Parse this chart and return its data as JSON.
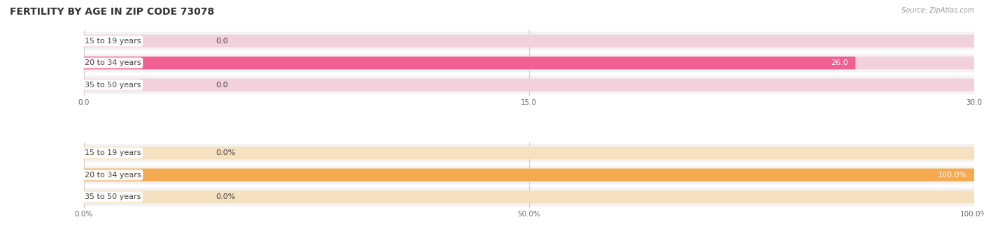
{
  "title": "FERTILITY BY AGE IN ZIP CODE 73078",
  "source": "Source: ZipAtlas.com",
  "top_chart": {
    "categories": [
      "15 to 19 years",
      "20 to 34 years",
      "35 to 50 years"
    ],
    "values": [
      0.0,
      26.0,
      0.0
    ],
    "xlim": [
      0,
      30.0
    ],
    "xticks": [
      0.0,
      15.0,
      30.0
    ],
    "xtick_labels": [
      "0.0",
      "15.0",
      "30.0"
    ],
    "bar_color": "#f06090",
    "bar_bg_color": "#f2d0dc",
    "value_color_inside": "#ffffff",
    "value_color_outside": "#555555",
    "label_value_threshold": 24.0
  },
  "bottom_chart": {
    "categories": [
      "15 to 19 years",
      "20 to 34 years",
      "35 to 50 years"
    ],
    "values": [
      0.0,
      100.0,
      0.0
    ],
    "xlim": [
      0,
      100.0
    ],
    "xticks": [
      0.0,
      50.0,
      100.0
    ],
    "xtick_labels": [
      "0.0%",
      "50.0%",
      "100.0%"
    ],
    "bar_color": "#f5aa50",
    "bar_bg_color": "#f5e0c0",
    "value_color_inside": "#ffffff",
    "value_color_outside": "#555555",
    "label_value_threshold": 90.0
  },
  "label_bg_color": "#ffffff",
  "label_text_color": "#444444",
  "fig_bg_color": "#ffffff",
  "title_fontsize": 10,
  "label_fontsize": 8,
  "value_fontsize": 8,
  "tick_fontsize": 7.5,
  "source_fontsize": 7
}
